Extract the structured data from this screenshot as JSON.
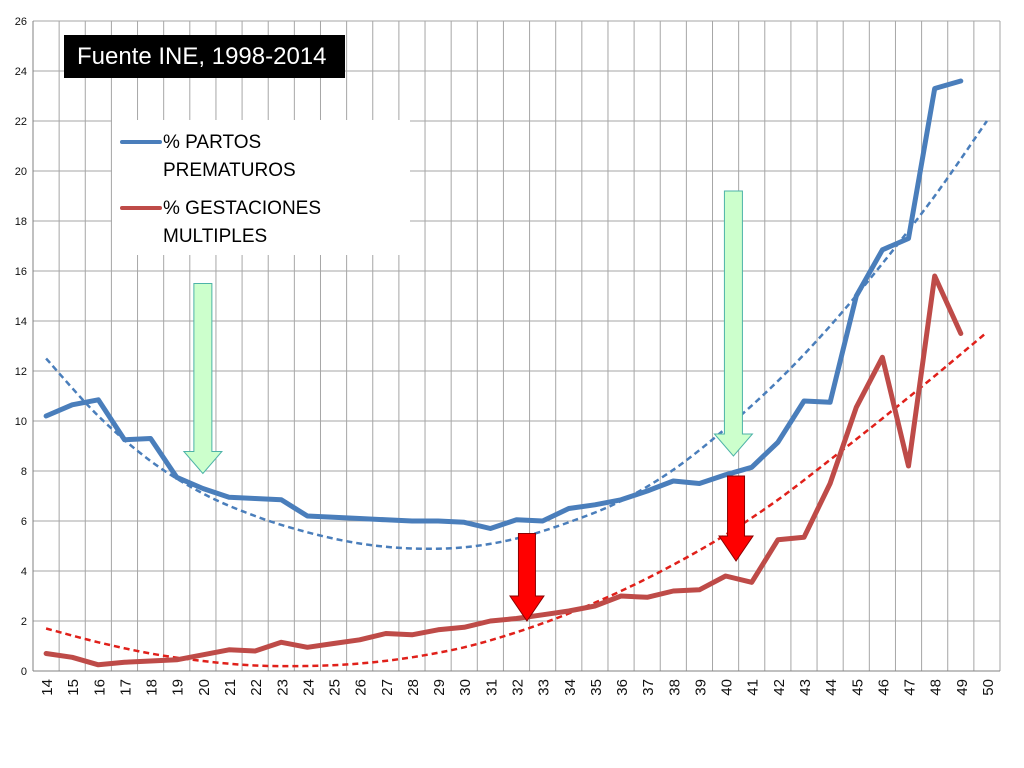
{
  "chart_data": {
    "type": "line",
    "x": [
      14,
      15,
      16,
      17,
      18,
      19,
      20,
      21,
      22,
      23,
      24,
      25,
      26,
      27,
      28,
      29,
      30,
      31,
      32,
      33,
      34,
      35,
      36,
      37,
      38,
      39,
      40,
      41,
      42,
      43,
      44,
      45,
      46,
      47,
      48,
      49
    ],
    "x_ticks": [
      "14",
      "15",
      "16",
      "17",
      "18",
      "19",
      "20",
      "21",
      "22",
      "23",
      "24",
      "25",
      "26",
      "27",
      "28",
      "29",
      "30",
      "31",
      "32",
      "33",
      "34",
      "35",
      "36",
      "37",
      "38",
      "39",
      "40",
      "41",
      "42",
      "43",
      "44",
      "45",
      "46",
      "47",
      "48",
      "49",
      "50"
    ],
    "xlim": [
      14,
      50
    ],
    "ylim": [
      0,
      26
    ],
    "y_ticks": [
      "0",
      "2",
      "4",
      "6",
      "8",
      "10",
      "12",
      "14",
      "16",
      "18",
      "20",
      "22",
      "24",
      "26"
    ],
    "grid": true,
    "title": "Fuente INE, 1998-2014",
    "legend_position": "top-left",
    "series": [
      {
        "name": "% PARTOS PREMATUROS",
        "color": "#4a7ebb",
        "values": [
          10.2,
          10.65,
          10.85,
          9.25,
          9.3,
          7.75,
          7.3,
          6.95,
          6.9,
          6.85,
          6.2,
          6.15,
          6.1,
          6.05,
          6.0,
          6.0,
          5.95,
          5.7,
          6.05,
          6.0,
          6.5,
          6.65,
          6.85,
          7.2,
          7.6,
          7.5,
          7.85,
          8.15,
          9.15,
          10.8,
          10.75,
          15.0,
          16.85,
          17.3,
          23.3,
          23.6
        ],
        "trend": {
          "type": "polynomial",
          "color": "#4a7ebb",
          "x": [
            14,
            16,
            18,
            20,
            22,
            24,
            26,
            28,
            30,
            32,
            34,
            36,
            38,
            40,
            42,
            44,
            46,
            48,
            50
          ],
          "values": [
            12.5,
            10.2,
            8.4,
            7.1,
            6.2,
            5.55,
            5.1,
            4.9,
            4.95,
            5.3,
            5.95,
            6.8,
            8.05,
            9.7,
            11.6,
            13.8,
            16.3,
            19.0,
            22.0
          ]
        }
      },
      {
        "name": "% GESTACIONES MULTIPLES",
        "color": "#be4b48",
        "values": [
          0.7,
          0.55,
          0.25,
          0.35,
          0.4,
          0.45,
          0.65,
          0.85,
          0.8,
          1.15,
          0.95,
          1.1,
          1.25,
          1.5,
          1.45,
          1.65,
          1.75,
          2.0,
          2.1,
          2.25,
          2.4,
          2.6,
          3.0,
          2.95,
          3.2,
          3.25,
          3.8,
          3.55,
          5.25,
          5.35,
          7.5,
          10.55,
          12.55,
          8.2,
          15.8,
          13.5
        ],
        "trend": {
          "type": "polynomial",
          "color": "#e0201a",
          "x": [
            14,
            16,
            18,
            20,
            22,
            24,
            26,
            28,
            30,
            32,
            34,
            36,
            38,
            40,
            42,
            44,
            46,
            48,
            50
          ],
          "values": [
            1.7,
            1.15,
            0.7,
            0.4,
            0.22,
            0.2,
            0.3,
            0.55,
            0.95,
            1.55,
            2.3,
            3.2,
            4.25,
            5.45,
            6.85,
            8.45,
            10.1,
            11.8,
            13.55
          ]
        }
      }
    ],
    "annotations": [
      {
        "type": "arrow-down",
        "label": "green-arrow-icon",
        "x": 20,
        "y_top": 15.5,
        "y_tip": 7.9,
        "fill": "#ccffcc",
        "stroke": "#4db3a8"
      },
      {
        "type": "arrow-down",
        "label": "green-arrow-icon",
        "x": 40.3,
        "y_top": 19.2,
        "y_tip": 8.6,
        "fill": "#ccffcc",
        "stroke": "#4db3a8"
      },
      {
        "type": "arrow-down",
        "label": "red-arrow-icon",
        "x": 32.4,
        "y_top": 5.5,
        "y_tip": 2.0,
        "fill": "#ff0000",
        "stroke": "#8b0000"
      },
      {
        "type": "arrow-down",
        "label": "red-arrow-icon",
        "x": 40.4,
        "y_top": 7.8,
        "y_tip": 4.4,
        "fill": "#ff0000",
        "stroke": "#8b0000"
      }
    ]
  }
}
